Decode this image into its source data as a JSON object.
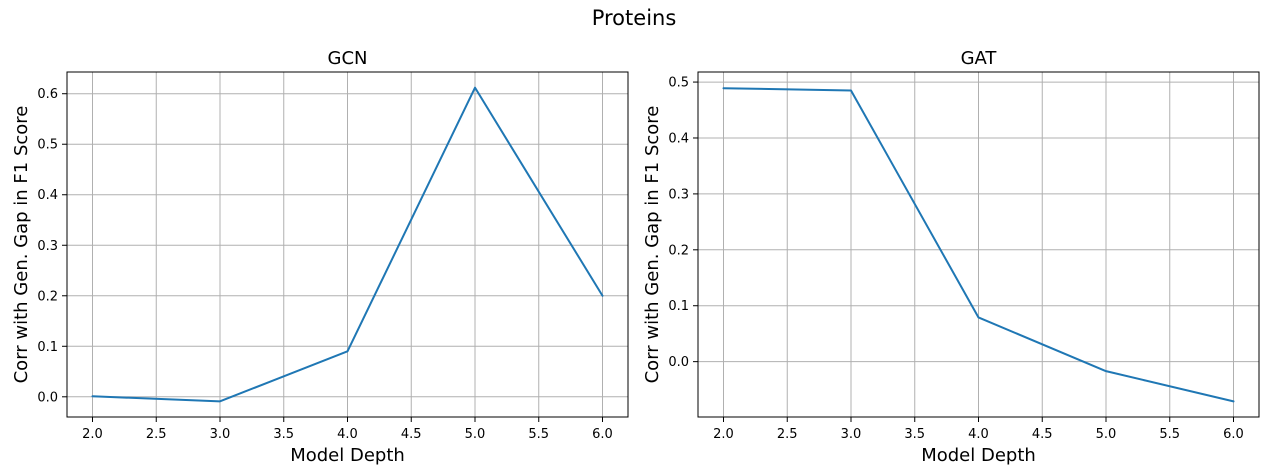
{
  "figure": {
    "suptitle": "Proteins"
  },
  "chart_data": [
    {
      "type": "line",
      "title": "GCN",
      "xlabel": "Model Depth",
      "ylabel": "Corr with Gen. Gap in F1 Score",
      "x": [
        2.0,
        3.0,
        4.0,
        5.0,
        6.0
      ],
      "series": [
        {
          "name": "GCN",
          "values": [
            0.001,
            -0.009,
            0.09,
            0.612,
            0.2
          ],
          "color": "#1f77b4"
        }
      ],
      "xlim": [
        1.8,
        6.2
      ],
      "ylim": [
        -0.04,
        0.643
      ],
      "xticks": [
        2.0,
        2.5,
        3.0,
        3.5,
        4.0,
        4.5,
        5.0,
        5.5,
        6.0
      ],
      "xtick_labels": [
        "2.0",
        "2.5",
        "3.0",
        "3.5",
        "4.0",
        "4.5",
        "5.0",
        "5.5",
        "6.0"
      ],
      "yticks": [
        0.0,
        0.1,
        0.2,
        0.3,
        0.4,
        0.5,
        0.6
      ],
      "ytick_labels": [
        "0.0",
        "0.1",
        "0.2",
        "0.3",
        "0.4",
        "0.5",
        "0.6"
      ],
      "grid": true
    },
    {
      "type": "line",
      "title": "GAT",
      "xlabel": "Model Depth",
      "ylabel": "Corr with Gen. Gap in F1 Score",
      "x": [
        2.0,
        3.0,
        4.0,
        5.0,
        6.0
      ],
      "series": [
        {
          "name": "GAT",
          "values": [
            0.489,
            0.485,
            0.079,
            -0.017,
            -0.071
          ],
          "color": "#1f77b4"
        }
      ],
      "xlim": [
        1.8,
        6.2
      ],
      "ylim": [
        -0.099,
        0.518
      ],
      "xticks": [
        2.0,
        2.5,
        3.0,
        3.5,
        4.0,
        4.5,
        5.0,
        5.5,
        6.0
      ],
      "xtick_labels": [
        "2.0",
        "2.5",
        "3.0",
        "3.5",
        "4.0",
        "4.5",
        "5.0",
        "5.5",
        "6.0"
      ],
      "yticks": [
        0.0,
        0.1,
        0.2,
        0.3,
        0.4,
        0.5
      ],
      "ytick_labels": [
        "0.0",
        "0.1",
        "0.2",
        "0.3",
        "0.4",
        "0.5"
      ],
      "grid": true
    }
  ]
}
